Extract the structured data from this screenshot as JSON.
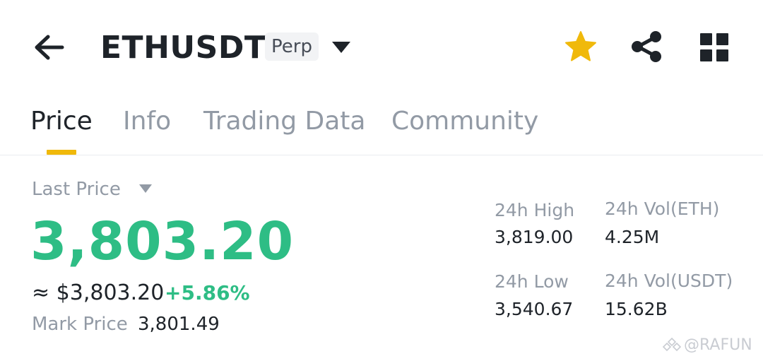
{
  "header": {
    "symbol": "ETHUSDT",
    "contract_type": "Perp",
    "icons": {
      "back": "arrow-left-icon",
      "dropdown": "caret-down-icon",
      "favorite": "star-icon",
      "share": "share-icon",
      "menu": "grid-icon"
    },
    "favorite_color": "#f0b90b"
  },
  "tabs": [
    {
      "label": "Price",
      "active": true
    },
    {
      "label": "Info",
      "active": false
    },
    {
      "label": "Trading Data",
      "active": false
    },
    {
      "label": "Community",
      "active": false
    }
  ],
  "price": {
    "label": "Last Price",
    "last_price": "3,803.20",
    "usd_equiv": "≈ $3,803.20",
    "change_pct": "+5.86%",
    "mark_label": "Mark Price",
    "mark_value": "3,801.49"
  },
  "stats": {
    "high_label": "24h High",
    "high_value": "3,819.00",
    "low_label": "24h Low",
    "low_value": "3,540.67",
    "vol_eth_label": "24h Vol(ETH)",
    "vol_eth_value": "4.25M",
    "vol_usdt_label": "24h Vol(USDT)",
    "vol_usdt_value": "15.62B"
  },
  "colors": {
    "positive": "#2ebd85",
    "accent": "#f0b90b",
    "muted": "#929aa5",
    "text": "#1e2329"
  },
  "watermark": "@RAFUN"
}
